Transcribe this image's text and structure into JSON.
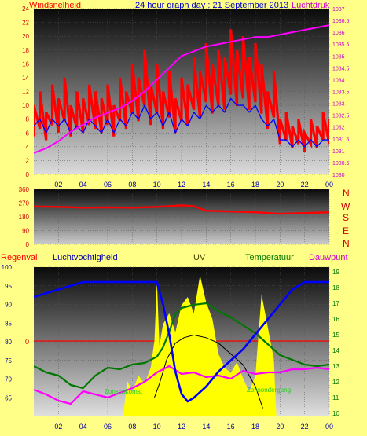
{
  "colors": {
    "background": "#ffff88",
    "wind": "#ff0000",
    "windAvg": "#0000ff",
    "pressure": "#ff00ff",
    "direction": "#ff0000",
    "humidity": "#0000ff",
    "temperature": "#007700",
    "dewpoint": "#ff00ff",
    "uv": "#ffff00",
    "solar": "#000000",
    "rain": "#ff0000"
  },
  "header": {
    "left": "Windsnelheid",
    "center": "24 hour graph day : 21 September 2013",
    "right": "Luchtdruk"
  },
  "compass": [
    "N",
    "W",
    "S",
    "E",
    "N"
  ],
  "bottom_headers": {
    "rain": "Regenval",
    "humidity": "Luchtvochtigheid",
    "uv": "UV",
    "temperature": "Temperatuur",
    "dewpoint": "Dauwpunt"
  },
  "annotations": {
    "sunrise": "Zonsopkomst",
    "sunset": "Zonsondergang"
  },
  "rain_zero_label": "0",
  "chart_data": [
    {
      "type": "line",
      "title": "24 hour graph day : 21 September 2013",
      "x_ticks": [
        "02",
        "04",
        "06",
        "08",
        "10",
        "12",
        "14",
        "16",
        "18",
        "20",
        "22",
        "00"
      ],
      "y_left": {
        "label": "Windsnelheid",
        "ticks": [
          0,
          2,
          4,
          6,
          8,
          10,
          12,
          14,
          16,
          18,
          20,
          22,
          24
        ],
        "range": [
          0,
          24
        ]
      },
      "y_right": {
        "label": "Luchtdruk",
        "ticks": [
          1030,
          1030.5,
          1031,
          1031.5,
          1032,
          1032.5,
          1033,
          1033.5,
          1034,
          1034.5,
          1035,
          1035.5,
          1036,
          1036.5,
          1037
        ],
        "range": [
          1030,
          1037
        ]
      },
      "x_range": [
        0,
        24
      ],
      "series": [
        {
          "name": "Windsnelheid",
          "axis": "left",
          "x": [
            0,
            0.5,
            1,
            1.5,
            2,
            2.5,
            3,
            3.5,
            4,
            4.5,
            5,
            5.5,
            6,
            6.5,
            7,
            7.5,
            8,
            8.5,
            9,
            9.5,
            10,
            10.5,
            11,
            11.5,
            12,
            12.5,
            13,
            13.5,
            14,
            14.5,
            15,
            15.5,
            16,
            16.5,
            17,
            17.5,
            18,
            18.5,
            19,
            19.5,
            20,
            20.5,
            21,
            21.5,
            22,
            22.5,
            23,
            23.5,
            24
          ],
          "y": [
            10,
            12,
            9,
            13,
            11,
            14,
            10,
            12,
            11,
            13,
            12,
            11,
            13,
            10,
            14,
            12,
            16,
            14,
            18,
            13,
            16,
            12,
            15,
            11,
            14,
            13,
            17,
            15,
            19,
            16,
            18,
            17,
            21,
            18,
            20,
            17,
            19,
            16,
            12,
            15,
            8,
            9,
            7,
            8,
            6,
            8,
            7,
            9,
            8
          ]
        },
        {
          "name": "Windsnelheid gem",
          "axis": "left",
          "x": [
            0,
            0.5,
            1,
            1.5,
            2,
            2.5,
            3,
            3.5,
            4,
            4.5,
            5,
            5.5,
            6,
            6.5,
            7,
            7.5,
            8,
            8.5,
            9,
            9.5,
            10,
            10.5,
            11,
            11.5,
            12,
            12.5,
            13,
            13.5,
            14,
            14.5,
            15,
            15.5,
            16,
            16.5,
            17,
            17.5,
            18,
            18.5,
            19,
            19.5,
            20,
            20.5,
            21,
            21.5,
            22,
            22.5,
            23,
            23.5,
            24
          ],
          "y": [
            7,
            8,
            6,
            8,
            7,
            8,
            6,
            7,
            6,
            8,
            7,
            6,
            8,
            6,
            8,
            7,
            9,
            8,
            10,
            8,
            9,
            7,
            9,
            6,
            8,
            7,
            9,
            8,
            10,
            9,
            10,
            9,
            11,
            10,
            10,
            9,
            10,
            8,
            7,
            8,
            5,
            5,
            4,
            5,
            4,
            5,
            4,
            5,
            5
          ]
        },
        {
          "name": "Luchtdruk",
          "axis": "right",
          "x": [
            0,
            1,
            2,
            3,
            4,
            5,
            6,
            7,
            8,
            9,
            10,
            11,
            12,
            13,
            14,
            15,
            16,
            17,
            18,
            19,
            20,
            21,
            22,
            23,
            24
          ],
          "y": [
            1030.9,
            1031.1,
            1031.4,
            1031.8,
            1032.1,
            1032.4,
            1032.6,
            1032.8,
            1033.1,
            1033.5,
            1034.0,
            1034.5,
            1035.0,
            1035.2,
            1035.4,
            1035.5,
            1035.6,
            1035.7,
            1035.8,
            1035.8,
            1035.9,
            1036.0,
            1036.1,
            1036.2,
            1036.3
          ]
        }
      ]
    },
    {
      "type": "line",
      "title": "",
      "y_left": {
        "ticks": [
          0,
          90,
          180,
          270,
          360
        ],
        "range": [
          0,
          360
        ]
      },
      "x_range": [
        0,
        24
      ],
      "series": [
        {
          "name": "Windrichting",
          "axis": "left",
          "x": [
            0,
            2,
            4,
            6,
            8,
            10,
            12,
            13,
            14,
            16,
            18,
            20,
            22,
            24
          ],
          "y": [
            248,
            245,
            240,
            242,
            240,
            245,
            255,
            250,
            220,
            215,
            210,
            200,
            205,
            210
          ]
        }
      ]
    },
    {
      "type": "line",
      "title": "",
      "x_ticks": [
        "02",
        "04",
        "06",
        "08",
        "10",
        "12",
        "14",
        "16",
        "18",
        "20",
        "22",
        "00"
      ],
      "y_left": {
        "label": "Luchtvochtigheid",
        "ticks": [
          65,
          70,
          75,
          80,
          85,
          90,
          95,
          100
        ],
        "range": [
          60,
          100
        ]
      },
      "y_right": {
        "label": "Temperatuur",
        "ticks": [
          10,
          11,
          12,
          13,
          14,
          15,
          16,
          17,
          18,
          19
        ],
        "range": [
          9.8,
          19.3
        ]
      },
      "x_range": [
        0,
        24
      ],
      "series": [
        {
          "name": "Luchtvochtigheid",
          "axis": "left",
          "x": [
            0,
            1,
            2,
            3,
            4,
            5,
            6,
            7,
            8,
            9,
            10,
            10.5,
            11,
            11.5,
            12,
            12.5,
            13,
            14,
            15,
            16,
            17,
            18,
            19,
            20,
            21,
            22,
            23,
            24
          ],
          "y": [
            92,
            93,
            94,
            95,
            96,
            96,
            96,
            96,
            96,
            96,
            96,
            90,
            82,
            72,
            66,
            64,
            65,
            68,
            72,
            75,
            78,
            82,
            86,
            90,
            94,
            96,
            96,
            96
          ]
        },
        {
          "name": "Temperatuur",
          "axis": "right",
          "x": [
            0,
            1,
            2,
            3,
            4,
            5,
            6,
            7,
            8,
            9,
            10,
            10.5,
            11,
            11.5,
            12,
            13,
            14,
            15,
            16,
            17,
            18,
            19,
            20,
            21,
            22,
            23,
            24
          ],
          "y": [
            13,
            12.6,
            12.4,
            11.8,
            11.6,
            12.4,
            12.9,
            12.8,
            13.1,
            13.2,
            13.6,
            14.2,
            15.2,
            16.3,
            16.7,
            16.9,
            17,
            16.5,
            16.1,
            15.6,
            15.1,
            14.4,
            13.7,
            13.4,
            13.1,
            13.0,
            13.1
          ]
        },
        {
          "name": "Dauwpunt",
          "axis": "right",
          "x": [
            0,
            1,
            2,
            3,
            4,
            5,
            6,
            7,
            8,
            9,
            10,
            11,
            12,
            13,
            14,
            15,
            16,
            17,
            18,
            19,
            20,
            21,
            22,
            23,
            24
          ],
          "y": [
            11.5,
            11.2,
            10.8,
            10.6,
            11.4,
            11.2,
            11.0,
            11.3,
            11.6,
            12.0,
            12.6,
            13.0,
            12.5,
            12.6,
            12.3,
            12.4,
            12.2,
            12.7,
            12.5,
            12.6,
            12.6,
            12.8,
            12.8,
            12.9,
            12.8
          ]
        }
      ],
      "uv": {
        "x": [
          7.3,
          7.6,
          8,
          8.5,
          9,
          9.5,
          9.8,
          10,
          10.2,
          10.5,
          11,
          11.5,
          12,
          12.5,
          13,
          13.5,
          14,
          14.5,
          15,
          15.5,
          16,
          16.5,
          17,
          17.5,
          18,
          18.5,
          19,
          19.5,
          19.7
        ],
        "y": [
          0.2,
          1.3,
          0.9,
          1.5,
          1.2,
          1.8,
          2.8,
          5.0,
          2.6,
          3.4,
          3.8,
          3.1,
          4.1,
          4.4,
          3.8,
          5.2,
          4.2,
          3.6,
          2.3,
          1.8,
          1.6,
          2.0,
          1.4,
          0.9,
          1.5,
          4.5,
          3.3,
          2.1,
          0
        ]
      },
      "solar": {
        "x": [
          9.8,
          10.2,
          10.8,
          11.5,
          12.2,
          13,
          14,
          15,
          16,
          17,
          18,
          18.6
        ],
        "y": [
          0.7,
          1.2,
          2.1,
          2.7,
          2.9,
          3.0,
          2.9,
          2.7,
          2.3,
          1.9,
          1.1,
          0.3
        ]
      },
      "rain": {
        "total": "0"
      }
    }
  ]
}
